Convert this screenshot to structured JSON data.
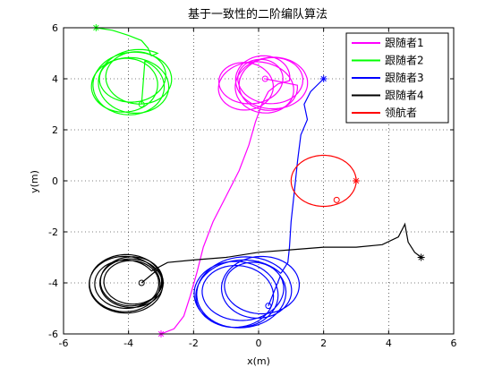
{
  "chart_data": {
    "type": "line",
    "title": "基于一致性的二阶编队算法",
    "xlabel": "x(m)",
    "ylabel": "y(m)",
    "xlim": [
      -6,
      6
    ],
    "ylim": [
      -6,
      6
    ],
    "xticks": [
      -6,
      -4,
      -2,
      0,
      2,
      4,
      6
    ],
    "yticks": [
      -6,
      -4,
      -2,
      0,
      2,
      4,
      6
    ],
    "grid": true,
    "legend_position": "top-right",
    "series": [
      {
        "name": "跟随者1",
        "color": "#ff00ff",
        "start": [
          -3,
          -6
        ],
        "end": [
          0.2,
          4
        ],
        "path": [
          [
            -3,
            -6
          ],
          [
            -2.6,
            -5.8
          ],
          [
            -2.3,
            -5.3
          ],
          [
            -2.1,
            -4.5
          ],
          [
            -1.9,
            -3.6
          ],
          [
            -1.7,
            -2.6
          ],
          [
            -1.4,
            -1.6
          ],
          [
            -1.0,
            -0.6
          ],
          [
            -0.6,
            0.4
          ],
          [
            -0.3,
            1.4
          ],
          [
            -0.1,
            2.3
          ],
          [
            0.1,
            3.0
          ],
          [
            0.3,
            3.5
          ],
          [
            0.6,
            3.8
          ]
        ],
        "orbit": {
          "center": [
            0.0,
            3.8
          ],
          "radius": 0.95,
          "drift": [
            0.9,
            0.25
          ],
          "turns": 6
        }
      },
      {
        "name": "跟随者2",
        "color": "#00ff00",
        "start": [
          -5,
          6
        ],
        "end": [
          -3.6,
          3.0
        ],
        "path": [
          [
            -5,
            6
          ],
          [
            -4.5,
            5.9
          ],
          [
            -4.0,
            5.7
          ],
          [
            -3.6,
            5.5
          ],
          [
            -3.4,
            5.2
          ],
          [
            -3.3,
            4.9
          ]
        ],
        "orbit": {
          "center": [
            -3.9,
            3.9
          ],
          "radius": 1.05,
          "drift": [
            0.4,
            0.4
          ],
          "turns": 5
        }
      },
      {
        "name": "跟随者3",
        "color": "#0000ff",
        "start": [
          2,
          4
        ],
        "end": [
          0.3,
          -4.9
        ],
        "path": [
          [
            2,
            4
          ],
          [
            1.6,
            3.5
          ],
          [
            1.4,
            3.0
          ],
          [
            1.5,
            2.4
          ],
          [
            1.3,
            1.8
          ],
          [
            1.2,
            0.8
          ],
          [
            1.1,
            -0.4
          ],
          [
            1.0,
            -1.6
          ],
          [
            0.95,
            -2.6
          ],
          [
            0.9,
            -3.2
          ],
          [
            0.7,
            -3.6
          ]
        ],
        "orbit": {
          "center": [
            -0.3,
            -4.3
          ],
          "radius": 1.2,
          "drift": [
            0.9,
            0.4
          ],
          "turns": 6
        }
      },
      {
        "name": "跟随者4",
        "color": "#000000",
        "start": [
          5,
          -3
        ],
        "end": [
          -3.6,
          -4.0
        ],
        "path": [
          [
            5,
            -3
          ],
          [
            4.8,
            -2.8
          ],
          [
            4.6,
            -2.4
          ],
          [
            4.5,
            -1.7
          ],
          [
            4.3,
            -2.2
          ],
          [
            3.8,
            -2.5
          ],
          [
            3.0,
            -2.6
          ],
          [
            2.0,
            -2.6
          ],
          [
            1.0,
            -2.7
          ],
          [
            0.0,
            -2.8
          ],
          [
            -1.0,
            -3.0
          ],
          [
            -2.0,
            -3.1
          ],
          [
            -2.8,
            -3.2
          ]
        ],
        "orbit": {
          "center": [
            -4.0,
            -4.0
          ],
          "radius": 1.0,
          "drift": [
            0.3,
            0.2
          ],
          "turns": 6
        }
      },
      {
        "name": "领航者",
        "color": "#ff0000",
        "start": [
          3,
          0
        ],
        "end": [
          2.4,
          -0.75
        ],
        "circle": {
          "center": [
            2,
            0
          ],
          "radius": 1.0
        }
      }
    ]
  }
}
